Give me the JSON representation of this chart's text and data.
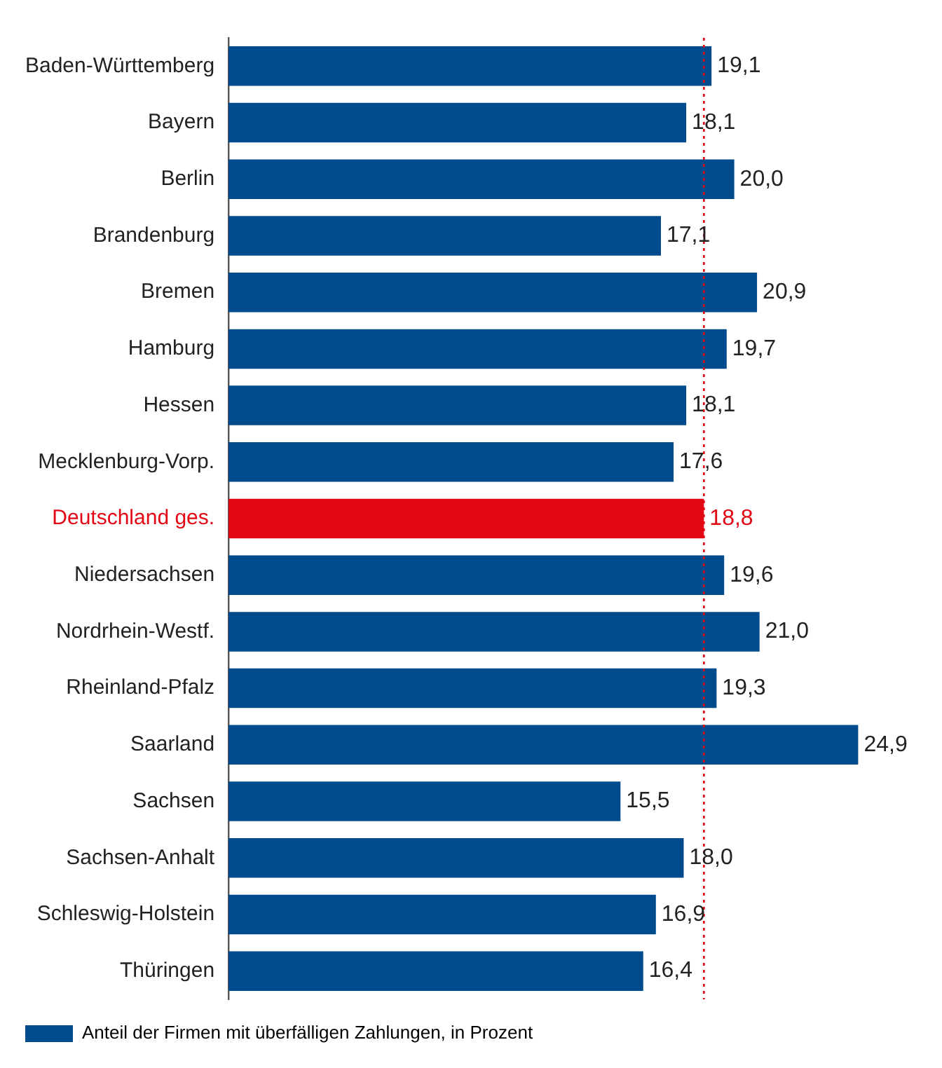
{
  "chart_data": {
    "type": "bar",
    "orientation": "horizontal",
    "categories": [
      "Baden-Württemberg",
      "Bayern",
      "Berlin",
      "Brandenburg",
      "Bremen",
      "Hamburg",
      "Hessen",
      "Mecklenburg-Vorp.",
      "Deutschland ges.",
      "Niedersachsen",
      "Nordrhein-Westf.",
      "Rheinland-Pfalz",
      "Saarland",
      "Sachsen",
      "Sachsen-Anhalt",
      "Schleswig-Holstein",
      "Thüringen"
    ],
    "series": [
      {
        "name": "Anteil der Firmen mit überfälligen Zahlungen, in Prozent",
        "color": "#004b8d",
        "values": [
          19.1,
          18.1,
          20.0,
          17.1,
          20.9,
          19.7,
          18.1,
          17.6,
          18.8,
          19.6,
          21.0,
          19.3,
          24.9,
          15.5,
          18.0,
          16.9,
          16.4
        ],
        "value_labels": [
          "19,1",
          "18,1",
          "20,0",
          "17,1",
          "20,9",
          "19,7",
          "18,1",
          "17,6",
          "18,8",
          "19,6",
          "21,0",
          "19,3",
          "24,9",
          "15,5",
          "18,0",
          "16,9",
          "16,4"
        ],
        "colors": [
          "#004b8d",
          "#004b8d",
          "#004b8d",
          "#004b8d",
          "#004b8d",
          "#004b8d",
          "#004b8d",
          "#004b8d",
          "#e30613",
          "#004b8d",
          "#004b8d",
          "#004b8d",
          "#004b8d",
          "#004b8d",
          "#004b8d",
          "#004b8d",
          "#004b8d"
        ]
      }
    ],
    "tick_labels": "y",
    "legend": "bottom",
    "grid": false,
    "ref_lines": [
      {
        "axis": "x",
        "value": 18.8,
        "color": "#e30613",
        "line_style": "dotted"
      }
    ]
  }
}
